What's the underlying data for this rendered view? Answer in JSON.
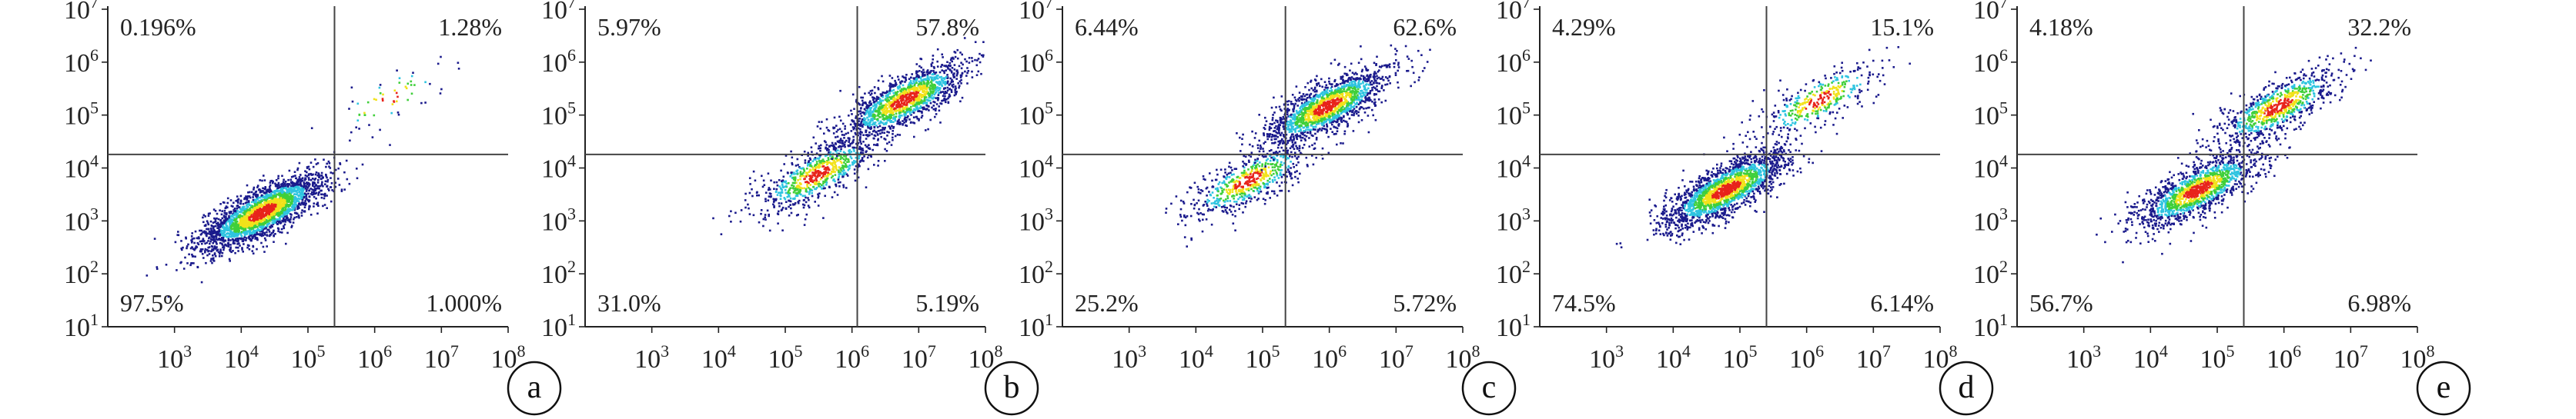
{
  "chart_data": [
    {
      "type": "scatter",
      "panel_label": "a",
      "x_tick_labels": [
        "10^3",
        "10^4",
        "10^5",
        "10^6",
        "10^7",
        "10^8"
      ],
      "y_tick_labels": [
        "10^1",
        "10^2",
        "10^3",
        "10^4",
        "10^5",
        "10^6",
        "10^7"
      ],
      "xlim": [
        100.0,
        100000000.0
      ],
      "ylim": [
        10.0,
        10000000.0
      ],
      "x_scale": "log",
      "y_scale": "log",
      "gate": {
        "x": 250000.0,
        "y": 18000.0
      },
      "quadrants": {
        "upper_left": "0.196%",
        "upper_right": "1.28%",
        "lower_left": "97.5%",
        "lower_right": "1.000%"
      },
      "populations": [
        {
          "x_center": 20000.0,
          "y_center": 1500.0,
          "weight": 97.5
        },
        {
          "x_center": 1500000.0,
          "y_center": 200000.0,
          "weight": 1.28
        }
      ]
    },
    {
      "type": "scatter",
      "panel_label": "b",
      "x_tick_labels": [
        "10^3",
        "10^4",
        "10^5",
        "10^6",
        "10^7",
        "10^8"
      ],
      "y_tick_labels": [
        "10^1",
        "10^2",
        "10^3",
        "10^4",
        "10^5",
        "10^6",
        "10^7"
      ],
      "xlim": [
        100.0,
        100000000.0
      ],
      "ylim": [
        10.0,
        10000000.0
      ],
      "x_scale": "log",
      "y_scale": "log",
      "gate": {
        "x": 1200000.0,
        "y": 18000.0
      },
      "quadrants": {
        "upper_left": "5.97%",
        "upper_right": "57.8%",
        "lower_left": "31.0%",
        "lower_right": "5.19%"
      },
      "populations": [
        {
          "x_center": 300000.0,
          "y_center": 8000.0,
          "weight": 31.0
        },
        {
          "x_center": 6000000.0,
          "y_center": 200000.0,
          "weight": 57.8
        }
      ]
    },
    {
      "type": "scatter",
      "panel_label": "c",
      "x_tick_labels": [
        "10^3",
        "10^4",
        "10^5",
        "10^6",
        "10^7",
        "10^8"
      ],
      "y_tick_labels": [
        "10^1",
        "10^2",
        "10^3",
        "10^4",
        "10^5",
        "10^6",
        "10^7"
      ],
      "xlim": [
        100.0,
        100000000.0
      ],
      "ylim": [
        10.0,
        10000000.0
      ],
      "x_scale": "log",
      "y_scale": "log",
      "gate": {
        "x": 220000.0,
        "y": 18000.0
      },
      "quadrants": {
        "upper_left": "6.44%",
        "upper_right": "62.6%",
        "lower_left": "25.2%",
        "lower_right": "5.72%"
      },
      "populations": [
        {
          "x_center": 60000.0,
          "y_center": 6000.0,
          "weight": 25.2
        },
        {
          "x_center": 900000.0,
          "y_center": 150000.0,
          "weight": 62.6
        }
      ]
    },
    {
      "type": "scatter",
      "panel_label": "d",
      "x_tick_labels": [
        "10^3",
        "10^4",
        "10^5",
        "10^6",
        "10^7",
        "10^8"
      ],
      "y_tick_labels": [
        "10^1",
        "10^2",
        "10^3",
        "10^4",
        "10^5",
        "10^6",
        "10^7"
      ],
      "xlim": [
        100.0,
        100000000.0
      ],
      "ylim": [
        10.0,
        10000000.0
      ],
      "x_scale": "log",
      "y_scale": "log",
      "gate": {
        "x": 250000.0,
        "y": 18000.0
      },
      "quadrants": {
        "upper_left": "4.29%",
        "upper_right": "15.1%",
        "lower_left": "74.5%",
        "lower_right": "6.14%"
      },
      "populations": [
        {
          "x_center": 60000.0,
          "y_center": 4000.0,
          "weight": 74.5
        },
        {
          "x_center": 1500000.0,
          "y_center": 200000.0,
          "weight": 15.1
        }
      ]
    },
    {
      "type": "scatter",
      "panel_label": "e",
      "x_tick_labels": [
        "10^3",
        "10^4",
        "10^5",
        "10^6",
        "10^7",
        "10^8"
      ],
      "y_tick_labels": [
        "10^1",
        "10^2",
        "10^3",
        "10^4",
        "10^5",
        "10^6",
        "10^7"
      ],
      "xlim": [
        100.0,
        100000000.0
      ],
      "ylim": [
        10.0,
        10000000.0
      ],
      "x_scale": "log",
      "y_scale": "log",
      "gate": {
        "x": 250000.0,
        "y": 18000.0
      },
      "quadrants": {
        "upper_left": "4.18%",
        "upper_right": "32.2%",
        "lower_left": "56.7%",
        "lower_right": "6.98%"
      },
      "populations": [
        {
          "x_center": 50000.0,
          "y_center": 4000.0,
          "weight": 56.7
        },
        {
          "x_center": 800000.0,
          "y_center": 150000.0,
          "weight": 32.2
        }
      ]
    }
  ],
  "colors": {
    "density_low": "#1a1a8c",
    "density_mid": "#2ec4e0",
    "density_midhigh": "#3fcf3a",
    "density_high": "#f2e21a",
    "density_peak": "#e8231b",
    "axis": "#222222",
    "gate": "#444444"
  }
}
